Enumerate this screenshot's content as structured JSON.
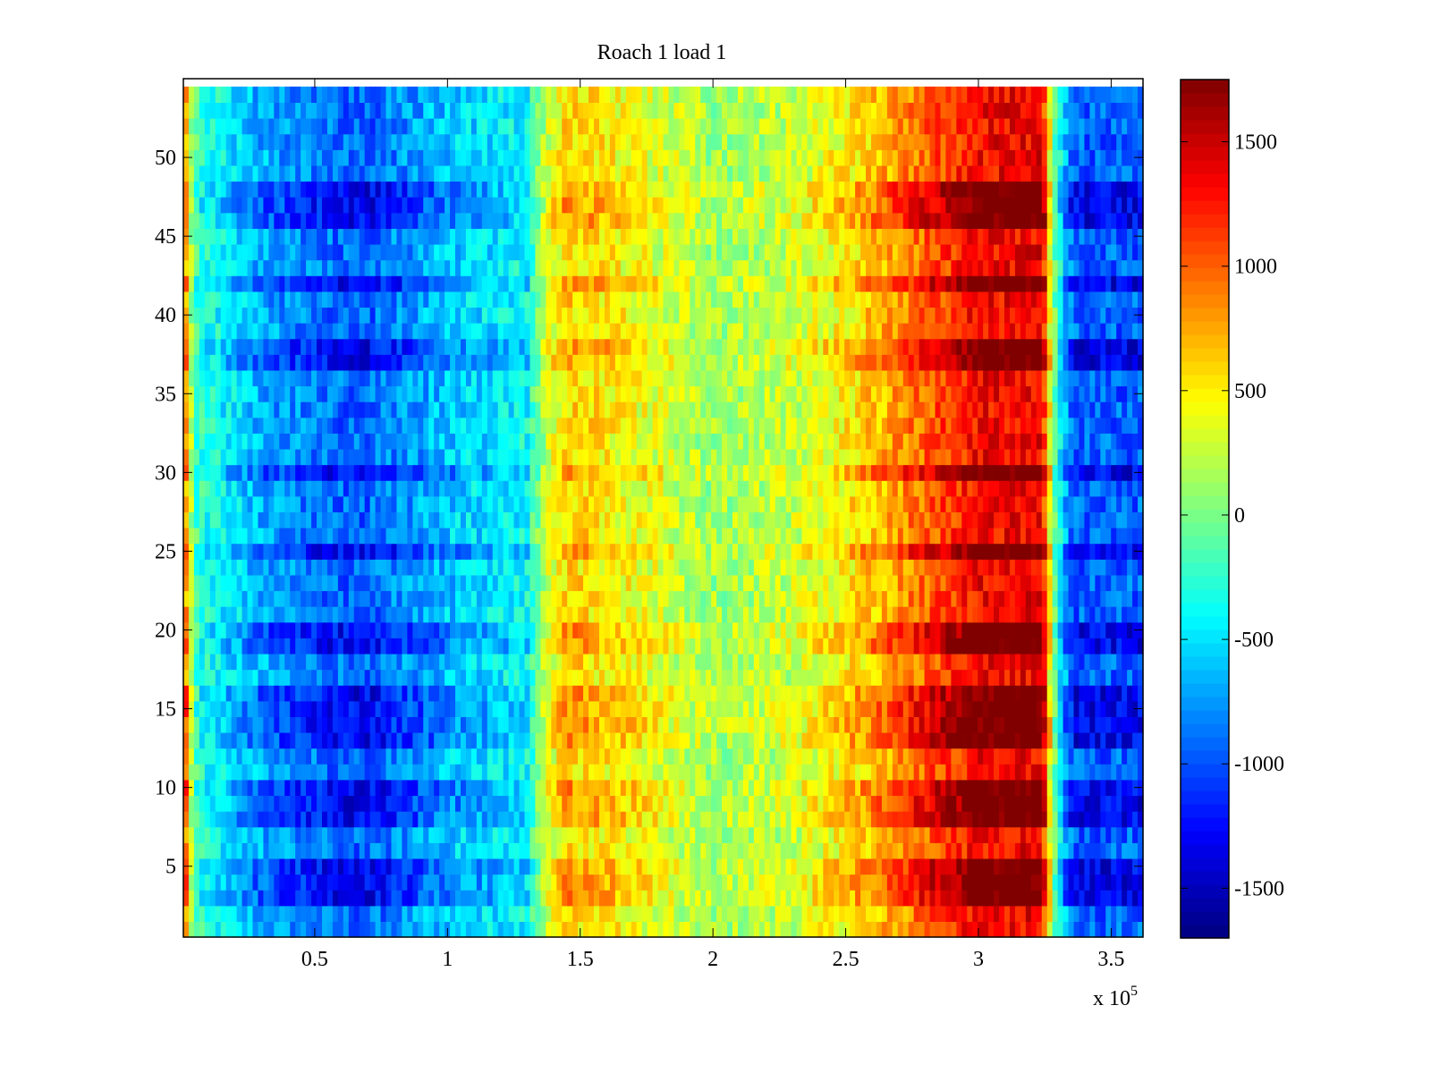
{
  "chart_data": {
    "type": "heatmap",
    "title": "Roach 1 load 1",
    "xlabel": "",
    "ylabel": "",
    "x_multiplier_label": {
      "prefix": "x 10",
      "exponent": "5"
    },
    "xlim": [
      0.005,
      3.62
    ],
    "ylim": [
      0.5,
      55
    ],
    "x_ticks": [
      0.5,
      1,
      1.5,
      2,
      2.5,
      3,
      3.5
    ],
    "x_tick_labels": [
      "0.5",
      "1",
      "1.5",
      "2",
      "2.5",
      "3",
      "3.5"
    ],
    "y_ticks": [
      5,
      10,
      15,
      20,
      25,
      30,
      35,
      40,
      45,
      50
    ],
    "y_tick_labels": [
      "5",
      "10",
      "15",
      "20",
      "25",
      "30",
      "35",
      "40",
      "45",
      "50"
    ],
    "colorbar": {
      "colormap": "jet",
      "clim": [
        -1700,
        1750
      ],
      "ticks": [
        -1500,
        -1000,
        -500,
        0,
        500,
        1000,
        1500
      ],
      "tick_labels": [
        "-1500",
        "-1000",
        "-500",
        "0",
        "500",
        "1000",
        "1500"
      ]
    },
    "rows": 54,
    "column_profile": {
      "x": [
        0.005,
        0.03,
        0.06,
        0.3,
        0.55,
        0.7,
        1.0,
        1.3,
        1.37,
        1.45,
        1.7,
        2.0,
        2.3,
        2.55,
        2.75,
        3.0,
        3.24,
        3.28,
        3.32,
        3.36,
        3.62
      ],
      "value": [
        1300,
        300,
        -300,
        -800,
        -1050,
        -1100,
        -700,
        -450,
        300,
        700,
        500,
        150,
        300,
        650,
        1050,
        1550,
        1600,
        100,
        -700,
        -1100,
        -1100
      ]
    },
    "noise_amplitude": 250,
    "strong_rows": [
      3,
      4,
      5,
      8,
      9,
      10,
      13,
      14,
      15,
      16,
      19,
      20,
      25,
      30,
      37,
      38,
      42,
      46,
      47,
      48
    ]
  }
}
